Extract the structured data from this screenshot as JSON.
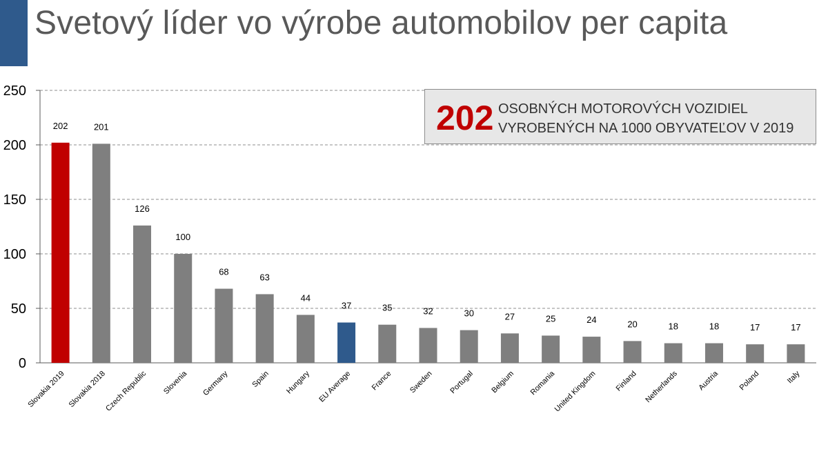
{
  "slide": {
    "title": "Svetový líder vo výrobe automobilov per capita"
  },
  "callout": {
    "number": "202",
    "line1": "OSOBNÝCH MOTOROVÝCH VOZIDIEL",
    "line2": "VYROBENÝCH NA 1000 OBYVATEĽOV V 2019"
  },
  "colors": {
    "highlight": "#c00000",
    "eu_average": "#2f5a8c",
    "default_bar": "#7f7f7f",
    "accent": "#2f5a8c"
  },
  "chart_data": {
    "type": "bar",
    "title": "",
    "xlabel": "",
    "ylabel": "",
    "ylim": [
      0,
      250
    ],
    "yticks": [
      0,
      50,
      100,
      150,
      200,
      250
    ],
    "grid": true,
    "categories": [
      "Slovakia 2019",
      "Slovakia 2018",
      "Czech Republic",
      "Slovenia",
      "Germany",
      "Spain",
      "Hungary",
      "EU Average",
      "France",
      "Sweden",
      "Portugal",
      "Belgium",
      "Romania",
      "United Kingdom",
      "Finland",
      "Netherlands",
      "Austria",
      "Poland",
      "Italy"
    ],
    "values": [
      202,
      201,
      126,
      100,
      68,
      63,
      44,
      37,
      35,
      32,
      30,
      27,
      25,
      24,
      20,
      18,
      18,
      17,
      17
    ],
    "bar_colors": [
      "#c00000",
      "#7f7f7f",
      "#7f7f7f",
      "#7f7f7f",
      "#7f7f7f",
      "#7f7f7f",
      "#7f7f7f",
      "#2f5a8c",
      "#7f7f7f",
      "#7f7f7f",
      "#7f7f7f",
      "#7f7f7f",
      "#7f7f7f",
      "#7f7f7f",
      "#7f7f7f",
      "#7f7f7f",
      "#7f7f7f",
      "#7f7f7f",
      "#7f7f7f"
    ]
  }
}
